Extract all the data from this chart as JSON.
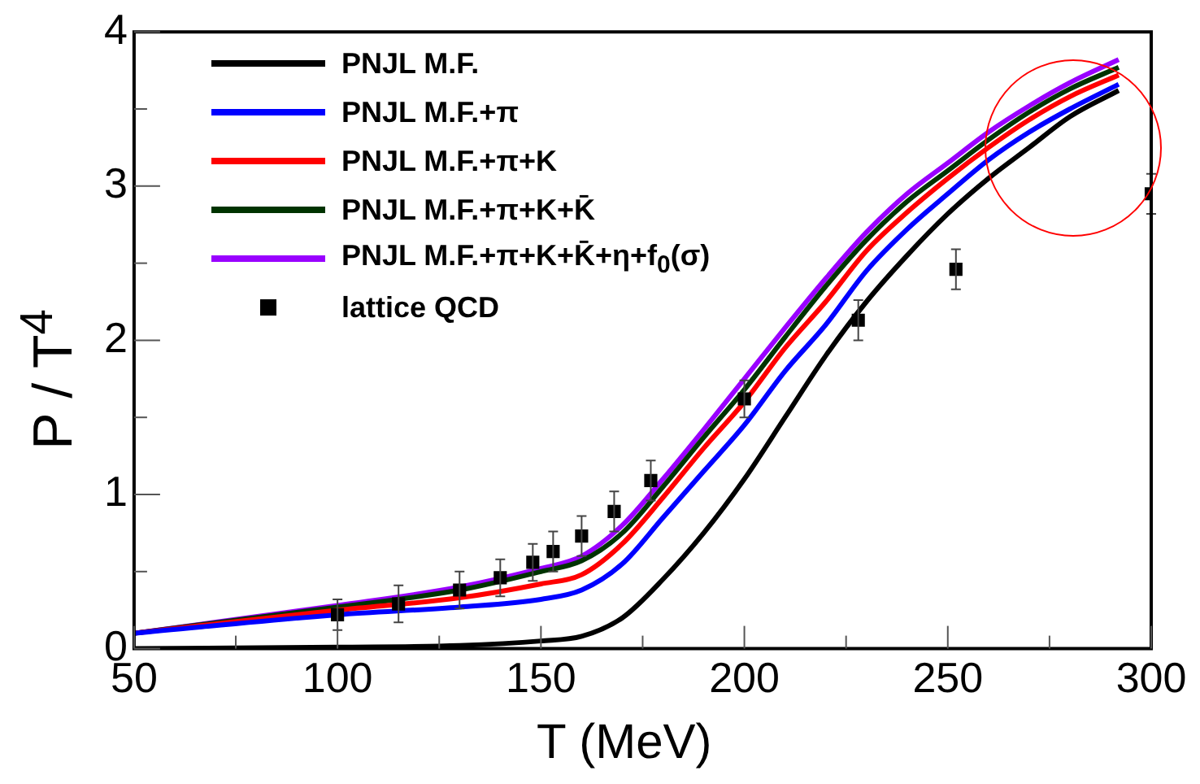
{
  "chart_data": {
    "type": "line",
    "xlabel": "T (MeV)",
    "ylabel": "P / T$^{4}$",
    "xlim": [
      50,
      300
    ],
    "ylim": [
      0,
      4
    ],
    "xticks": [
      50,
      {
        "value": 75,
        "label": null
      },
      100,
      {
        "value": 125,
        "label": null
      },
      150,
      {
        "value": 175,
        "label": null
      },
      200,
      {
        "value": 225,
        "label": null
      },
      250,
      {
        "value": 275,
        "label": null
      },
      300
    ],
    "yticks": [
      0,
      {
        "value": 0.5,
        "label": null
      },
      1,
      {
        "value": 1.5,
        "label": null
      },
      2,
      {
        "value": 2.5,
        "label": null
      },
      3,
      {
        "value": 3.5,
        "label": null
      },
      4
    ],
    "grid": false,
    "legend": "top left",
    "line_style": "solid",
    "x": [
      50,
      100,
      130,
      150,
      160,
      170,
      180,
      190,
      200,
      210,
      220,
      230,
      240,
      250,
      260,
      270,
      280,
      292
    ],
    "series": [
      {
        "name": "PNJL M.F.",
        "type": "line",
        "color": "#000000",
        "values": [
          0,
          0.01,
          0.02,
          0.05,
          0.08,
          0.2,
          0.45,
          0.75,
          1.1,
          1.5,
          1.9,
          2.25,
          2.55,
          2.82,
          3.05,
          3.25,
          3.45,
          3.62
        ]
      },
      {
        "name": "PNJL M.F.+π",
        "type": "line",
        "color": "#0000ff",
        "values": [
          0.1,
          0.22,
          0.27,
          0.32,
          0.38,
          0.55,
          0.85,
          1.15,
          1.45,
          1.8,
          2.1,
          2.45,
          2.72,
          2.95,
          3.17,
          3.35,
          3.5,
          3.66
        ]
      },
      {
        "name": "PNJL M.F.+π+K",
        "type": "line",
        "color": "#ff0000",
        "values": [
          0.1,
          0.25,
          0.33,
          0.42,
          0.48,
          0.68,
          0.98,
          1.3,
          1.6,
          1.95,
          2.25,
          2.58,
          2.83,
          3.05,
          3.25,
          3.43,
          3.58,
          3.72
        ]
      },
      {
        "name": "PNJL M.F.+π+K+K̄",
        "type": "line",
        "color": "#003300",
        "values": [
          0.1,
          0.27,
          0.38,
          0.5,
          0.57,
          0.75,
          1.05,
          1.37,
          1.68,
          2.02,
          2.35,
          2.65,
          2.9,
          3.1,
          3.3,
          3.48,
          3.63,
          3.77
        ]
      },
      {
        "name": "PNJL M.F.+π+K+K̄+η+f$_{0}$(σ)",
        "type": "line",
        "color": "#9900ff",
        "values": [
          0.1,
          0.28,
          0.4,
          0.52,
          0.6,
          0.8,
          1.1,
          1.42,
          1.75,
          2.08,
          2.4,
          2.7,
          2.95,
          3.15,
          3.35,
          3.52,
          3.67,
          3.82
        ]
      },
      {
        "name": "lattice QCD",
        "type": "scatter",
        "marker": "square",
        "color": "#000000",
        "x": [
          100,
          115,
          130,
          140,
          148,
          153,
          160,
          168,
          177,
          200,
          228,
          252,
          300
        ],
        "values": [
          0.22,
          0.29,
          0.38,
          0.46,
          0.56,
          0.63,
          0.73,
          0.89,
          1.09,
          1.62,
          2.13,
          2.46,
          2.95
        ],
        "errors": [
          0.1,
          0.12,
          0.12,
          0.12,
          0.12,
          0.13,
          0.13,
          0.13,
          0.13,
          0.12,
          0.13,
          0.13,
          0.13
        ]
      }
    ]
  }
}
